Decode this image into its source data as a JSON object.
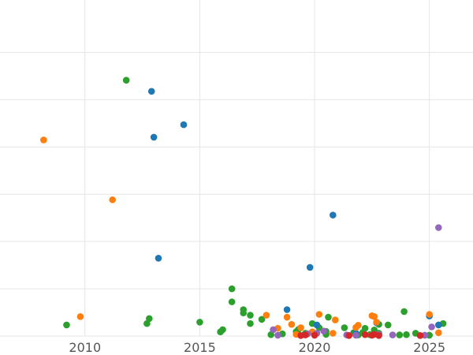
{
  "chart_data": {
    "type": "scatter",
    "title": "",
    "xlabel": "",
    "ylabel": "",
    "xlim": [
      2006.3,
      2026.9
    ],
    "ylim": [
      0,
      118
    ],
    "x_ticks": [
      "2010",
      "2015",
      "2020",
      "2025"
    ],
    "y_gridlines": [
      0,
      17,
      34,
      51,
      68,
      85,
      102
    ],
    "grid": true,
    "legend": "none",
    "series": [
      {
        "color": "#2ca02c",
        "points": [
          [
            2009.2,
            4.0
          ],
          [
            2011.8,
            92.0
          ],
          [
            2012.7,
            4.5
          ],
          [
            2012.8,
            6.3
          ],
          [
            2015.0,
            5.0
          ],
          [
            2015.9,
            1.5
          ],
          [
            2016.0,
            2.3
          ],
          [
            2016.4,
            17.0
          ],
          [
            2016.4,
            12.3
          ],
          [
            2016.9,
            9.5
          ],
          [
            2016.9,
            8.3
          ],
          [
            2017.2,
            7.5
          ],
          [
            2017.2,
            4.5
          ],
          [
            2017.7,
            6.0
          ],
          [
            2018.1,
            0.5
          ],
          [
            2018.6,
            0.8
          ],
          [
            2019.2,
            1.6
          ],
          [
            2019.3,
            2.4
          ],
          [
            2019.6,
            1.0
          ],
          [
            2019.9,
            4.5
          ],
          [
            2020.0,
            0.9
          ],
          [
            2020.2,
            3.0
          ],
          [
            2020.5,
            0.6
          ],
          [
            2020.5,
            1.7
          ],
          [
            2020.6,
            6.8
          ],
          [
            2021.3,
            3.0
          ],
          [
            2021.7,
            1.2
          ],
          [
            2021.9,
            0.4
          ],
          [
            2022.1,
            1.3
          ],
          [
            2022.2,
            2.8
          ],
          [
            2022.4,
            0.5
          ],
          [
            2022.6,
            2.2
          ],
          [
            2022.8,
            1.0
          ],
          [
            2022.8,
            4.2
          ],
          [
            2023.2,
            4.0
          ],
          [
            2023.7,
            0.4
          ],
          [
            2023.9,
            8.8
          ],
          [
            2024.0,
            0.5
          ],
          [
            2024.4,
            1.0
          ],
          [
            2025.0,
            0.3
          ],
          [
            2025.6,
            4.5
          ]
        ]
      },
      {
        "color": "#1f77b4",
        "points": [
          [
            2012.9,
            88.0
          ],
          [
            2013.0,
            71.5
          ],
          [
            2013.2,
            28.0
          ],
          [
            2014.3,
            76.0
          ],
          [
            2018.8,
            9.5
          ],
          [
            2019.8,
            24.7
          ],
          [
            2020.1,
            4.0
          ],
          [
            2020.8,
            43.5
          ],
          [
            2021.8,
            1.0
          ],
          [
            2022.7,
            4.8
          ],
          [
            2025.0,
            7.2
          ],
          [
            2025.4,
            4.0
          ]
        ]
      },
      {
        "color": "#ff7f0e",
        "points": [
          [
            2008.2,
            70.5
          ],
          [
            2009.8,
            7.0
          ],
          [
            2011.2,
            49.0
          ],
          [
            2017.9,
            7.5
          ],
          [
            2018.4,
            2.8
          ],
          [
            2018.8,
            6.8
          ],
          [
            2019.0,
            4.2
          ],
          [
            2019.2,
            0.6
          ],
          [
            2019.4,
            3.0
          ],
          [
            2019.9,
            1.5
          ],
          [
            2020.2,
            7.8
          ],
          [
            2020.8,
            1.0
          ],
          [
            2020.9,
            5.8
          ],
          [
            2021.8,
            3.1
          ],
          [
            2021.9,
            3.9
          ],
          [
            2022.5,
            7.3
          ],
          [
            2022.6,
            7.0
          ],
          [
            2022.7,
            5.0
          ],
          [
            2025.0,
            7.8
          ],
          [
            2025.4,
            1.2
          ]
        ]
      },
      {
        "color": "#9467bd",
        "points": [
          [
            2018.2,
            2.3
          ],
          [
            2018.4,
            0.3
          ],
          [
            2019.7,
            0.8
          ],
          [
            2020.1,
            1.0
          ],
          [
            2020.4,
            1.8
          ],
          [
            2021.4,
            0.4
          ],
          [
            2021.8,
            0.3
          ],
          [
            2022.8,
            0.6
          ],
          [
            2023.4,
            0.4
          ],
          [
            2024.8,
            0.3
          ],
          [
            2025.1,
            3.3
          ],
          [
            2025.4,
            39.0
          ]
        ]
      },
      {
        "color": "#d62728",
        "points": [
          [
            2019.4,
            0.2
          ],
          [
            2019.6,
            0.4
          ],
          [
            2020.0,
            0.3
          ],
          [
            2021.5,
            0.2
          ],
          [
            2022.2,
            0.5
          ],
          [
            2022.5,
            0.3
          ],
          [
            2022.6,
            0.6
          ],
          [
            2022.8,
            0.2
          ],
          [
            2024.6,
            0.2
          ]
        ]
      }
    ]
  }
}
